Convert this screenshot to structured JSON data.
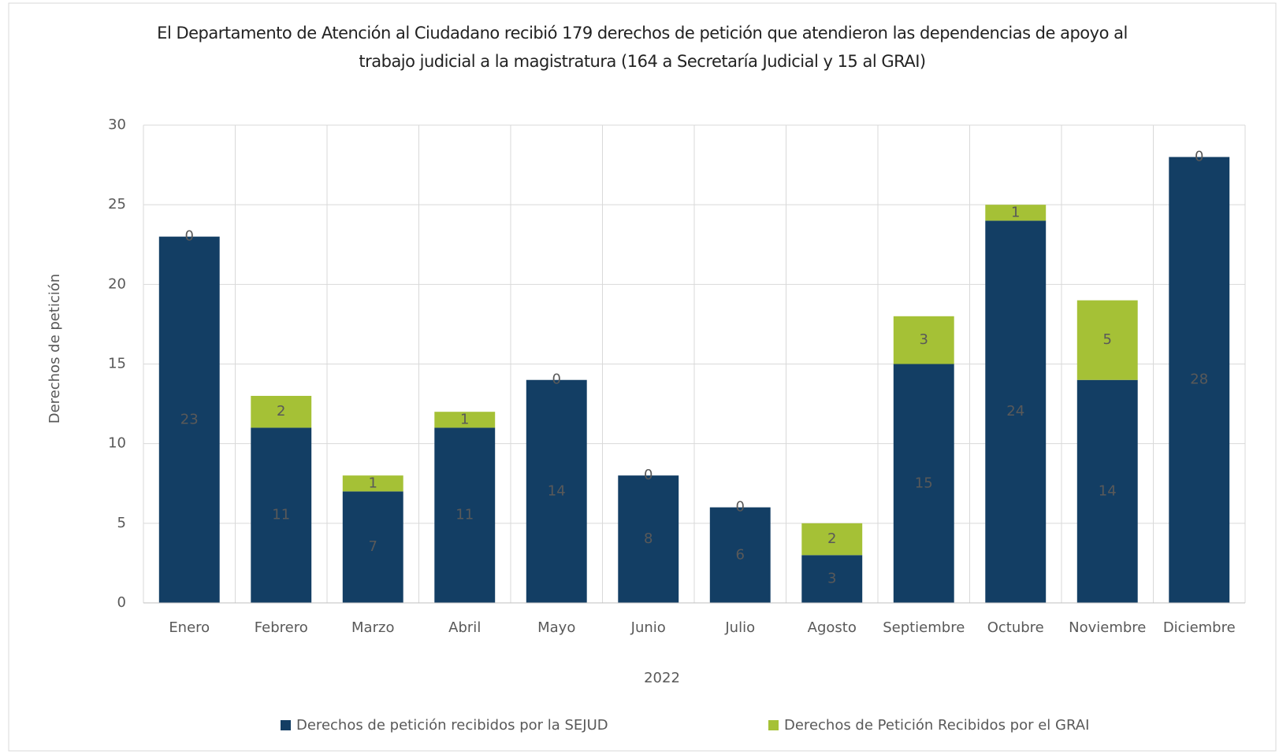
{
  "chart_data": {
    "type": "stacked_bar",
    "title": "El Departamento de Atención al Ciudadano recibió 179 derechos de petición que atendieron las dependencias de apoyo al trabajo judicial a la magistratura (164 a Secretaría Judicial y 15 al GRAI)",
    "x_label": "2022",
    "y_label": "Derechos de petición",
    "categories": [
      "Enero",
      "Febrero",
      "Marzo",
      "Abril",
      "Mayo",
      "Junio",
      "Julio",
      "Agosto",
      "Septiembre",
      "Octubre",
      "Noviembre",
      "Diciembre"
    ],
    "series": [
      {
        "name": "Derechos de petición recibidos por la SEJUD",
        "color": "#133e64",
        "label_color": "#ffffff",
        "values": [
          23,
          11,
          7,
          11,
          14,
          8,
          6,
          3,
          15,
          24,
          14,
          28
        ]
      },
      {
        "name": "Derechos de Petición Recibidos por el GRAI",
        "color": "#a5c136",
        "label_color": "#404040",
        "values": [
          0,
          2,
          1,
          1,
          0,
          0,
          0,
          2,
          3,
          1,
          5,
          0
        ]
      }
    ],
    "ylim": [
      0,
      30
    ],
    "yticks": [
      0,
      5,
      10,
      15,
      20,
      25,
      30
    ],
    "grid": true,
    "legend": "bottom"
  }
}
